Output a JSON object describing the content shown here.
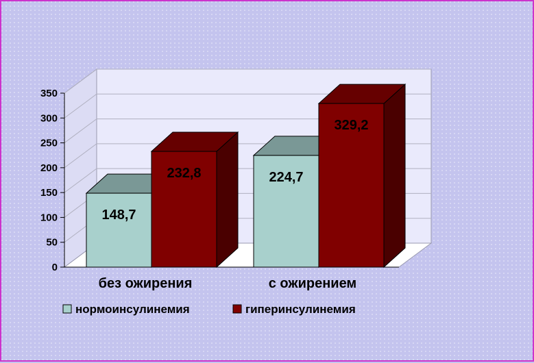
{
  "chart_data": {
    "type": "bar",
    "categories": [
      "без ожирения",
      "с ожирением"
    ],
    "series": [
      {
        "name": "нормоинсулинемия",
        "values": [
          148.7,
          224.7
        ]
      },
      {
        "name": "гиперинсулинемия",
        "values": [
          232.8,
          329.2
        ]
      }
    ],
    "data_labels": [
      [
        "148,7",
        "224,7"
      ],
      [
        "232,8",
        "329,2"
      ]
    ],
    "y_ticks": [
      "0",
      "50",
      "100",
      "150",
      "200",
      "250",
      "300",
      "350"
    ],
    "ylim": [
      0,
      350
    ],
    "grid": true,
    "legend_position": "bottom",
    "title": "",
    "xlabel": "",
    "ylabel": ""
  },
  "colors": {
    "series": [
      "#a8d0cc",
      "#800000"
    ],
    "series_top": [
      "#7a9896",
      "#660000"
    ],
    "series_side": [
      "#6f8f8c",
      "#4a0000"
    ],
    "plot_back": "#eaeafc",
    "plot_floor": "#ffffff",
    "gridline": "#b0b0c0"
  }
}
